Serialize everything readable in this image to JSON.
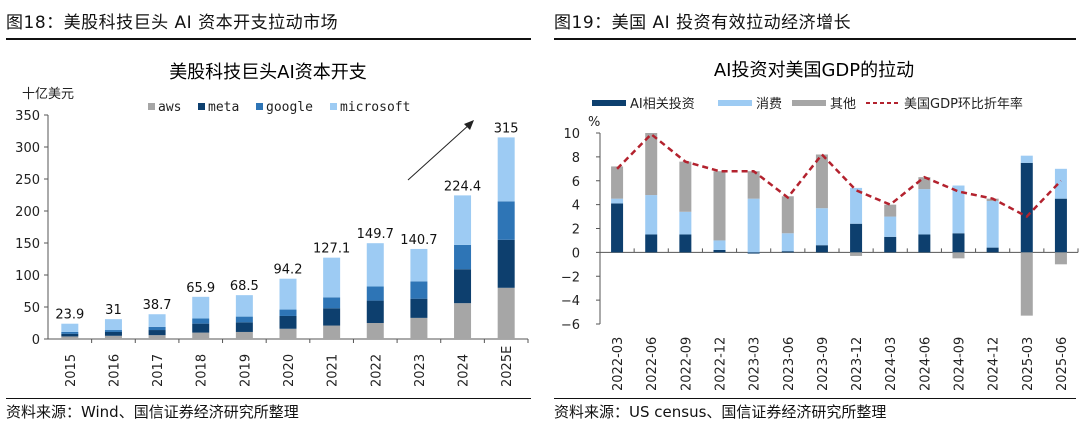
{
  "left": {
    "figure_title": "图18：美股科技巨头 AI 资本开支拉动市场",
    "source": "资料来源：Wind、国信证券经济研究所整理"
  },
  "right": {
    "figure_title": "图19：美国 AI 投资有效拉动经济增长",
    "source": "资料来源：US census、国信证券经济研究所整理"
  },
  "chart_data": [
    {
      "type": "bar",
      "stacked": true,
      "title": "美股科技巨头AI资本开支",
      "ylabel": "十亿美元",
      "xlabel": "",
      "ylim": [
        0,
        350
      ],
      "yticks": [
        0,
        50,
        100,
        150,
        200,
        250,
        300,
        350
      ],
      "legend_position": "top",
      "categories": [
        "2015",
        "2016",
        "2017",
        "2018",
        "2019",
        "2020",
        "2021",
        "2022",
        "2023",
        "2024",
        "2025E"
      ],
      "totals": [
        23.9,
        31,
        38.7,
        65.9,
        68.5,
        94.2,
        127.1,
        149.7,
        140.7,
        224.4,
        315
      ],
      "total_labels": [
        "23.9",
        "31",
        "38.7",
        "65.9",
        "68.5",
        "94.2",
        "127.1",
        "149.7",
        "140.7",
        "224.4",
        "315"
      ],
      "series": [
        {
          "name": "aws",
          "color": "#a6a6a6",
          "values": [
            4,
            5,
            6,
            10,
            11,
            16,
            21,
            25,
            33,
            56,
            80
          ]
        },
        {
          "name": "meta",
          "color": "#0d3f6e",
          "values": [
            4,
            6,
            8,
            14,
            15,
            20,
            27,
            35,
            30,
            53,
            75
          ]
        },
        {
          "name": "google",
          "color": "#2e75b6",
          "values": [
            3,
            3,
            5,
            8,
            9,
            10,
            17,
            22,
            27,
            38,
            60
          ]
        },
        {
          "name": "microsoft",
          "color": "#9dcbf3",
          "values": [
            12.9,
            17,
            19.7,
            33.9,
            33.5,
            48.2,
            62.1,
            67.7,
            50.7,
            77.4,
            100
          ]
        }
      ],
      "annotation": "arrow"
    },
    {
      "type": "bar",
      "stacked": true,
      "title": "AI投资对美国GDP的拉动",
      "ylabel": "%",
      "xlabel": "",
      "ylim": [
        -6,
        10
      ],
      "yticks": [
        -6,
        -4,
        -2,
        0,
        2,
        4,
        6,
        8,
        10
      ],
      "legend_position": "top",
      "categories": [
        "2022-03",
        "2022-06",
        "2022-09",
        "2022-12",
        "2023-03",
        "2023-06",
        "2023-09",
        "2023-12",
        "2024-03",
        "2024-06",
        "2024-09",
        "2024-12",
        "2025-03",
        "2025-06"
      ],
      "series": [
        {
          "name": "AI相关投资",
          "color": "#0d3f6e",
          "values": [
            4.1,
            1.5,
            1.5,
            0.2,
            -0.1,
            0.1,
            0.6,
            2.4,
            1.3,
            1.5,
            1.6,
            0.4,
            7.5,
            4.5
          ]
        },
        {
          "name": "消费",
          "color": "#9dcbf3",
          "values": [
            0.4,
            3.3,
            1.9,
            0.8,
            4.5,
            1.5,
            3.1,
            3.0,
            1.7,
            3.8,
            4.0,
            3.9,
            0.6,
            2.5
          ]
        },
        {
          "name": "其他",
          "color": "#a6a6a6",
          "values": [
            2.7,
            5.2,
            4.2,
            5.8,
            2.3,
            3.1,
            4.5,
            -0.3,
            1.0,
            1.0,
            -0.5,
            0.2,
            -5.3,
            -1.0
          ]
        }
      ],
      "line": {
        "name": "美国GDP环比折年率",
        "color": "#b3222e",
        "dashed": true,
        "values": [
          7.0,
          9.9,
          7.6,
          6.8,
          6.8,
          4.6,
          8.2,
          5.2,
          4.0,
          6.3,
          5.1,
          4.5,
          3.0,
          6.0
        ]
      }
    }
  ]
}
